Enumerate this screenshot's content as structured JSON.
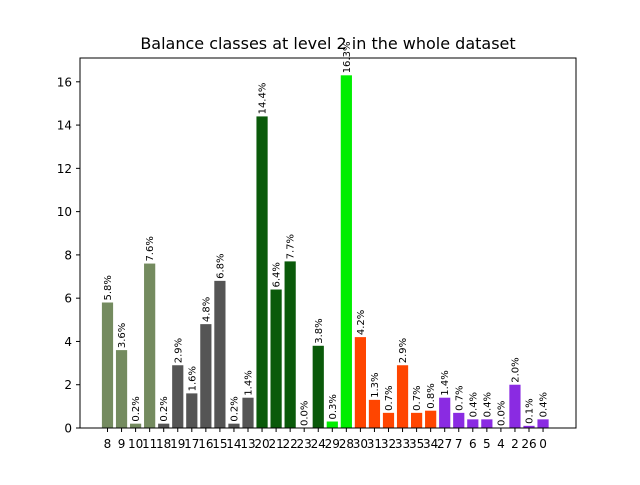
{
  "chart_data": {
    "type": "bar",
    "title": "Balance classes at level 2 in the whole dataset",
    "xlabel": "",
    "ylabel": "",
    "ylim": [
      0,
      17.1
    ],
    "yticks": [
      0,
      2,
      4,
      6,
      8,
      10,
      12,
      14,
      16
    ],
    "grid": false,
    "categories": [
      "8",
      "9",
      "10",
      "11",
      "18",
      "19",
      "17",
      "16",
      "15",
      "14",
      "13",
      "20",
      "21",
      "22",
      "23",
      "24",
      "29",
      "28",
      "30",
      "31",
      "32",
      "33",
      "35",
      "34",
      "27",
      "7",
      "6",
      "5",
      "4",
      "2",
      "26",
      "0"
    ],
    "values": [
      5.8,
      3.6,
      0.2,
      7.6,
      0.2,
      2.9,
      1.6,
      4.8,
      6.8,
      0.2,
      1.4,
      14.4,
      6.4,
      7.7,
      0.0,
      3.8,
      0.3,
      16.3,
      4.2,
      1.3,
      0.7,
      2.9,
      0.7,
      0.8,
      1.4,
      0.7,
      0.4,
      0.4,
      0.0,
      2.0,
      0.1,
      0.4
    ],
    "labels": [
      "5.8%",
      "3.6%",
      "0.2%",
      "7.6%",
      "0.2%",
      "2.9%",
      "1.6%",
      "4.8%",
      "6.8%",
      "0.2%",
      "1.4%",
      "14.4%",
      "6.4%",
      "7.7%",
      "0.0%",
      "3.8%",
      "0.3%",
      "16.3%",
      "4.2%",
      "1.3%",
      "0.7%",
      "2.9%",
      "0.7%",
      "0.8%",
      "1.4%",
      "0.7%",
      "0.4%",
      "0.4%",
      "0.0%",
      "2.0%",
      "0.1%",
      "0.4%"
    ],
    "colors": [
      "#748b5f",
      "#748b5f",
      "#748b5f",
      "#748b5f",
      "#555555",
      "#555555",
      "#555555",
      "#555555",
      "#555555",
      "#555555",
      "#555555",
      "#0a5a0a",
      "#0a5a0a",
      "#0a5a0a",
      "#0a5a0a",
      "#0a5a0a",
      "#00ee00",
      "#00ee00",
      "#ff4500",
      "#ff4500",
      "#ff4500",
      "#ff4500",
      "#ff4500",
      "#ff4500",
      "#8a2be2",
      "#8a2be2",
      "#8a2be2",
      "#8a2be2",
      "#8a2be2",
      "#8a2be2",
      "#8a2be2",
      "#8a2be2"
    ]
  }
}
